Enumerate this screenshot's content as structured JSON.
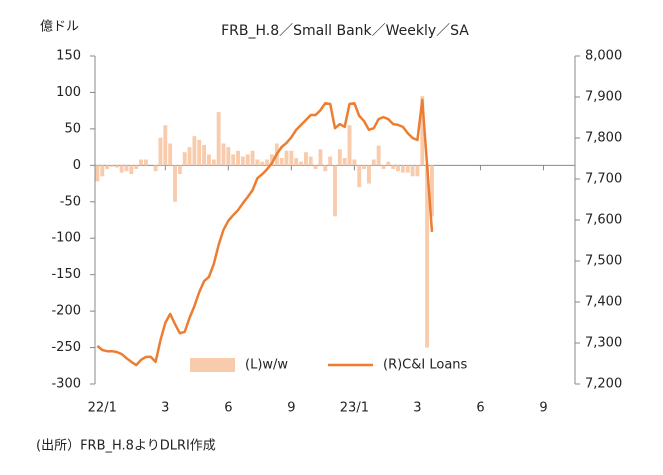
{
  "chart_data": {
    "type": "bar-line",
    "title": "FRB_H.8／Small Bank／Weekly／SA",
    "unit_label": "億ドル",
    "source": "(出所）FRB_H.8よりDLRI作成",
    "categories": [
      null,
      "22/1",
      null,
      null,
      null,
      null,
      null,
      null,
      null,
      null,
      null,
      null,
      null,
      null,
      "3",
      null,
      null,
      null,
      null,
      null,
      null,
      null,
      null,
      null,
      null,
      null,
      null,
      "6",
      null,
      null,
      null,
      null,
      null,
      null,
      null,
      null,
      null,
      null,
      null,
      null,
      "9",
      null,
      null,
      null,
      null,
      null,
      null,
      null,
      null,
      null,
      null,
      null,
      null,
      "23/1",
      null,
      null,
      null,
      null,
      null,
      null,
      null,
      null,
      null,
      null,
      null,
      null,
      "3",
      null,
      null,
      null,
      null,
      null,
      null,
      null,
      null,
      null,
      null,
      null,
      null,
      "6",
      null,
      null,
      null,
      null,
      null,
      null,
      null,
      null,
      null,
      null,
      null,
      null,
      "9",
      null,
      null,
      null,
      null,
      null,
      null
    ],
    "series": [
      {
        "name": "(L)w/w",
        "kind": "bar",
        "axis": "y",
        "color": "#f8cbad",
        "values": [
          -22,
          -15,
          -5,
          -2,
          -3,
          -10,
          -8,
          -12,
          -5,
          8,
          8,
          0,
          -8,
          38,
          55,
          30,
          -50,
          -12,
          18,
          25,
          40,
          35,
          28,
          15,
          8,
          73,
          30,
          25,
          15,
          20,
          12,
          15,
          20,
          8,
          5,
          8,
          15,
          30,
          10,
          20,
          20,
          10,
          5,
          18,
          12,
          -5,
          22,
          -8,
          12,
          -70,
          22,
          10,
          55,
          8,
          -30,
          -5,
          -25,
          8,
          27,
          -5,
          5,
          -5,
          -8,
          -10,
          -10,
          -15,
          -15,
          95,
          -250,
          -70,
          null,
          null,
          null,
          null,
          null,
          null,
          null,
          null,
          null,
          null,
          null,
          null,
          null,
          null,
          null,
          null,
          null,
          null,
          null,
          null,
          null,
          null,
          null,
          null,
          null,
          null,
          null,
          null,
          null
        ]
      },
      {
        "name": "(R)C&I Loans",
        "kind": "line",
        "axis": "y2",
        "color": "#ed7d31",
        "values": [
          7293,
          7283,
          7280,
          7280,
          7278,
          7273,
          7263,
          7254,
          7246,
          7259,
          7266,
          7266,
          7254,
          7307,
          7349,
          7371,
          7346,
          7324,
          7327,
          7361,
          7390,
          7424,
          7451,
          7461,
          7493,
          7539,
          7576,
          7598,
          7612,
          7624,
          7641,
          7656,
          7673,
          7702,
          7712,
          7724,
          7739,
          7761,
          7778,
          7788,
          7802,
          7820,
          7832,
          7844,
          7856,
          7856,
          7868,
          7885,
          7883,
          7824,
          7834,
          7827,
          7883,
          7885,
          7854,
          7841,
          7820,
          7824,
          7846,
          7851,
          7846,
          7834,
          7832,
          7827,
          7812,
          7800,
          7795,
          7893,
          7734,
          7571,
          null,
          null,
          null,
          null,
          null,
          null,
          null,
          null,
          null,
          null,
          null,
          null,
          null,
          null,
          null,
          null,
          null,
          null,
          null,
          null,
          null,
          null,
          null,
          null,
          null,
          null,
          null,
          null,
          null
        ]
      }
    ],
    "ylim": [
      -300,
      150
    ],
    "yticks": [
      150,
      100,
      50,
      0,
      -50,
      -100,
      -150,
      -200,
      -250,
      -300
    ],
    "y2lim": [
      7200,
      8000
    ],
    "y2ticks": [
      {
        "value": 8000,
        "label": "8,000"
      },
      {
        "value": 7900,
        "label": "7,900"
      },
      {
        "value": 7800,
        "label": "7,800"
      },
      {
        "value": 7700,
        "label": "7,700"
      },
      {
        "value": 7600,
        "label": "7,600"
      },
      {
        "value": 7500,
        "label": "7,500"
      },
      {
        "value": 7400,
        "label": "7,400"
      },
      {
        "value": 7300,
        "label": "7,300"
      },
      {
        "value": 7200,
        "label": "7,200"
      }
    ],
    "negative_tick_color": "#e00000",
    "legend": "bottom"
  }
}
